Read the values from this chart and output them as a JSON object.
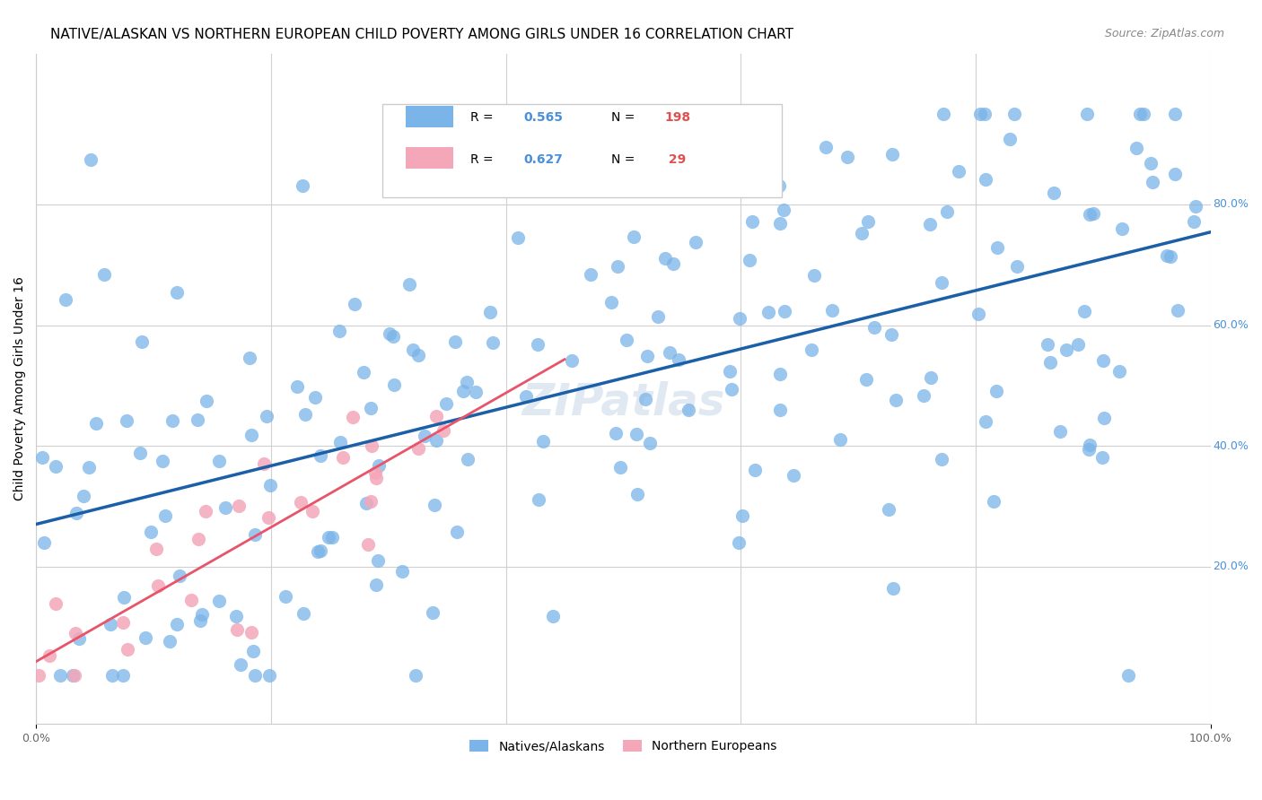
{
  "title": "NATIVE/ALASKAN VS NORTHERN EUROPEAN CHILD POVERTY AMONG GIRLS UNDER 16 CORRELATION CHART",
  "source": "Source: ZipAtlas.com",
  "xlabel": "",
  "ylabel": "Child Poverty Among Girls Under 16",
  "xlim": [
    0,
    1
  ],
  "ylim": [
    0,
    1
  ],
  "xtick_labels": [
    "0.0%",
    "100.0%"
  ],
  "ytick_labels": [
    "20.0%",
    "40.0%",
    "60.0%",
    "80.0%"
  ],
  "ytick_positions": [
    0.2,
    0.4,
    0.6,
    0.8
  ],
  "blue_R": 0.565,
  "blue_N": 198,
  "pink_R": 0.627,
  "pink_N": 29,
  "blue_color": "#7ab4e8",
  "pink_color": "#f4a7b9",
  "blue_line_color": "#1a5fa8",
  "pink_line_color": "#e8546a",
  "grid_color": "#d0d0d0",
  "background_color": "#ffffff",
  "watermark": "ZIPatlas",
  "legend_label_blue": "Natives/Alaskans",
  "legend_label_pink": "Northern Europeans",
  "title_fontsize": 11,
  "axis_label_fontsize": 10,
  "tick_fontsize": 9,
  "source_fontsize": 9,
  "seed_blue": 42,
  "seed_pink": 99
}
